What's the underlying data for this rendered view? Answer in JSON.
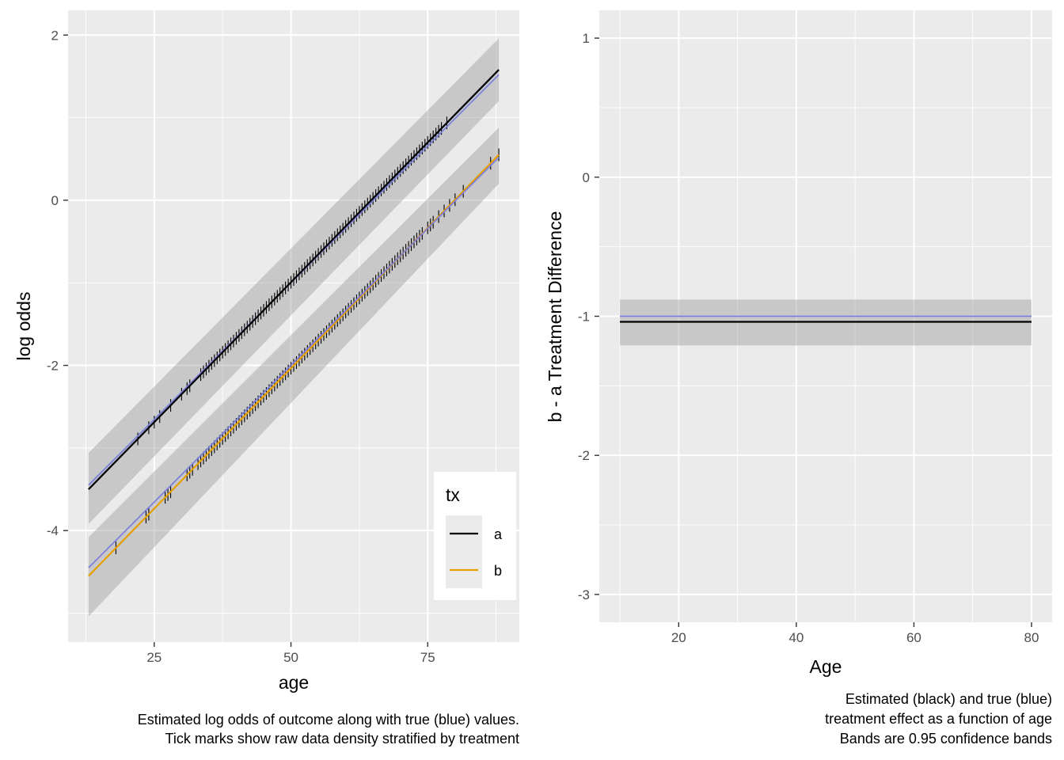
{
  "chart_data": [
    {
      "type": "line",
      "xlabel": "age",
      "ylabel": "log odds",
      "xlim": [
        9.25,
        91.75
      ],
      "ylim": [
        -5.35,
        2.3
      ],
      "x_ticks": [
        25,
        50,
        75
      ],
      "x_tick_labels": [
        "25",
        "50",
        "75"
      ],
      "y_ticks": [
        2,
        0,
        -2,
        -4
      ],
      "y_tick_labels": [
        "2",
        "0",
        "-2",
        "-4"
      ],
      "grid": true,
      "legend": {
        "title": "tx",
        "placement": "bottom-right",
        "entries": [
          {
            "label": "a",
            "color": "#000000"
          },
          {
            "label": "b",
            "color": "#E69F00"
          }
        ]
      },
      "series": [
        {
          "name": "a",
          "x": [
            13,
            88
          ],
          "y": [
            -3.5,
            1.58
          ],
          "color": "#000000",
          "band_lower": [
            -3.92,
            1.2
          ],
          "band_upper": [
            -3.06,
            1.96
          ]
        },
        {
          "name": "b",
          "x": [
            13,
            88
          ],
          "y": [
            -4.55,
            0.55
          ],
          "color": "#E69F00",
          "band_lower": [
            -5.04,
            0.2
          ],
          "band_upper": [
            -4.08,
            0.88
          ]
        }
      ],
      "true_values": [
        {
          "x": [
            13,
            88
          ],
          "y": [
            -3.45,
            1.52
          ],
          "color": "#7B7BDE"
        },
        {
          "x": [
            13,
            88
          ],
          "y": [
            -4.45,
            0.52
          ],
          "color": "#7B7BDE"
        }
      ],
      "tick_marks_a": [
        22,
        24,
        25,
        26,
        28,
        30,
        31,
        31.5,
        33.5,
        34,
        34.5,
        35,
        35.5,
        36,
        36.5,
        37,
        37.5,
        38,
        38.5,
        39,
        39.5,
        40,
        40.5,
        41,
        41.5,
        42,
        42.5,
        43,
        43.5,
        44,
        44.5,
        45,
        45.5,
        46,
        46.5,
        47,
        47.5,
        48,
        48.5,
        49,
        49.5,
        50,
        50.5,
        51,
        51.5,
        52,
        52.5,
        53,
        53.5,
        54,
        54.5,
        55,
        55.5,
        56,
        56.5,
        57,
        57.5,
        58,
        58.5,
        59,
        59.5,
        60,
        60.5,
        61,
        61.5,
        62,
        62.5,
        63,
        63.5,
        64,
        64.5,
        65,
        65.5,
        66,
        66.5,
        67,
        67.5,
        68,
        68.5,
        69,
        69.5,
        70,
        70.5,
        71,
        71.5,
        72,
        72.5,
        73,
        73.5,
        74,
        74.5,
        75,
        75.5,
        76,
        76.5,
        77,
        77.5,
        78.5
      ],
      "tick_marks_b": [
        18,
        23.5,
        24,
        27,
        27.5,
        28,
        31,
        31.5,
        32,
        33,
        33.5,
        34,
        34.5,
        35,
        35.5,
        36,
        36.5,
        37,
        37.5,
        38,
        38.5,
        39,
        39.5,
        40,
        40.5,
        41,
        41.5,
        42,
        42.5,
        43,
        43.5,
        44,
        44.5,
        45,
        45.5,
        46,
        46.5,
        47,
        47.5,
        48,
        48.5,
        49,
        49.5,
        50,
        50.5,
        51,
        51.5,
        52,
        52.5,
        53,
        53.5,
        54,
        54.5,
        55,
        55.5,
        56,
        56.5,
        57,
        57.5,
        58,
        58.5,
        59,
        59.5,
        60,
        60.5,
        61,
        61.5,
        62,
        62.5,
        63,
        63.5,
        64,
        64.5,
        65,
        65.5,
        66,
        66.5,
        67,
        67.5,
        68,
        68.5,
        69,
        69.5,
        70,
        70.5,
        71,
        71.5,
        72,
        72.5,
        73,
        73.5,
        74,
        75,
        75.5,
        76,
        77,
        78,
        79,
        80,
        81.5,
        86.5,
        88
      ],
      "caption": [
        "Estimated log odds of outcome along with true (blue) values.",
        "Tick marks show raw data density stratified by treatment"
      ]
    },
    {
      "type": "line",
      "xlabel": "Age",
      "ylabel": "b - a Treatment Difference",
      "xlim": [
        6.5,
        83.5
      ],
      "ylim": [
        -3.2,
        1.2
      ],
      "x_ticks": [
        20,
        40,
        60,
        80
      ],
      "x_tick_labels": [
        "20",
        "40",
        "60",
        "80"
      ],
      "y_ticks": [
        1,
        0,
        -1,
        -2,
        -3
      ],
      "y_tick_labels": [
        "1",
        "0",
        "-1",
        "-2",
        "-3"
      ],
      "grid": true,
      "series": [
        {
          "x": [
            10,
            80
          ],
          "y": [
            -1.04,
            -1.04
          ],
          "color": "#000000",
          "band_lower": [
            -1.21,
            -1.21
          ],
          "band_upper": [
            -0.88,
            -0.88
          ]
        }
      ],
      "true_values": [
        {
          "x": [
            10,
            80
          ],
          "y": [
            -1.0,
            -1.0
          ],
          "color": "#7B7BDE"
        }
      ],
      "caption": [
        "Estimated (black) and true (blue)",
        "treatment effect as a function of age",
        "Bands are 0.95 confidence bands"
      ]
    }
  ]
}
